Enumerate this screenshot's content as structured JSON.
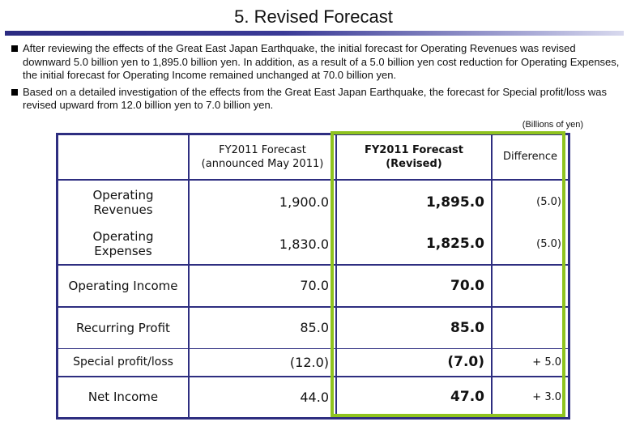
{
  "slide": {
    "title": "5. Revised Forecast",
    "bullets": [
      "After reviewing the effects of the Great East Japan Earthquake, the initial forecast for Operating Revenues was revised downward 5.0 billion yen to 1,895.0 billion yen.  In addition, as a result of a 5.0 billion yen cost reduction for Operating Expenses, the initial forecast for Operating Income remained unchanged at 70.0 billion yen.",
      "Based on a detailed investigation of the effects from the Great East Japan Earthquake, the forecast for Special profit/loss was revised upward from 12.0 billion yen to 7.0 billion yen."
    ],
    "units": "(Billions of yen)"
  },
  "table": {
    "headers": {
      "col1": "",
      "col2_line1": "FY2011 Forecast",
      "col2_line2": "(announced May 2011)",
      "col3_line1": "FY2011 Forecast",
      "col3_line2": "(Revised)",
      "col4": "Difference"
    },
    "rows": [
      {
        "label_line1": "Operating",
        "label_line2": "Revenues",
        "original": "1,900.0",
        "revised": "1,895.0",
        "difference": "(5.0)"
      },
      {
        "label_line1": "Operating",
        "label_line2": "Expenses",
        "original": "1,830.0",
        "revised": "1,825.0",
        "difference": "(5.0)"
      },
      {
        "label": "Operating Income",
        "original": "70.0",
        "revised": "70.0",
        "difference": ""
      },
      {
        "label": "Recurring Profit",
        "original": "85.0",
        "revised": "85.0",
        "difference": ""
      },
      {
        "label": "Special profit/loss",
        "original": "(12.0)",
        "revised": "(7.0)",
        "difference": "+ 5.0"
      },
      {
        "label": "Net Income",
        "original": "44.0",
        "revised": "47.0",
        "difference": "+ 3.0"
      }
    ]
  },
  "colors": {
    "title_rule": "#2b2b82",
    "table_border": "#2e2e80",
    "highlight": "#8fc31f"
  }
}
